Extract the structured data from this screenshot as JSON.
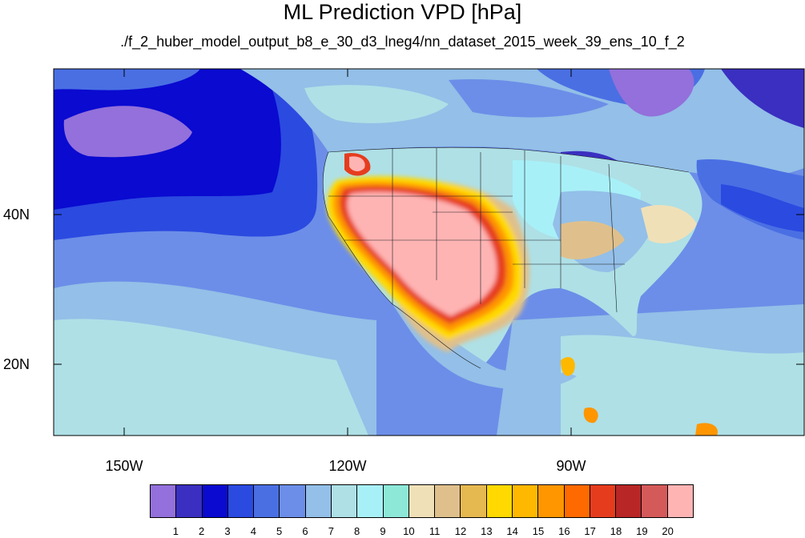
{
  "title": "ML Prediction VPD [hPa]",
  "subtitle": "./f_2_huber_model_output_b8_e_30_d3_lneg4/nn_dataset_2015_week_39_ens_10_f_2",
  "lat_labels": [
    "40N",
    "20N"
  ],
  "lon_labels": [
    "150W",
    "120W",
    "90W"
  ],
  "colorbar": {
    "labels": [
      "1",
      "2",
      "3",
      "4",
      "5",
      "6",
      "7",
      "8",
      "9",
      "10",
      "11",
      "12",
      "13",
      "14",
      "15",
      "16",
      "17",
      "18",
      "19",
      "20"
    ],
    "colors": [
      "#9370db",
      "#3a2fc0",
      "#0a0ad0",
      "#2b4ae0",
      "#4a6fe3",
      "#6c8ee8",
      "#93bfe8",
      "#aee0e6",
      "#a8f0f8",
      "#8ee8d8",
      "#f0e0b8",
      "#dfc08c",
      "#e6b850",
      "#ffd900",
      "#ffb800",
      "#ff9600",
      "#ff6a00",
      "#e63c1e",
      "#b82626",
      "#d45a5a",
      "#ffb4b4"
    ]
  }
}
